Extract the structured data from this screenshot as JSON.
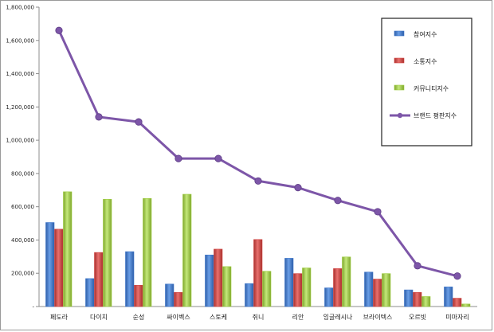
{
  "chart_data": {
    "type": "bar",
    "categories": [
      "페도라",
      "다이치",
      "순성",
      "싸이벡스",
      "스토케",
      "쥐니",
      "리안",
      "잉글레시나",
      "브라이텍스",
      "오르빗",
      "미마자리"
    ],
    "ylim": [
      0,
      1800000
    ],
    "yticks": [
      "-",
      "200,000",
      "400,000",
      "600,000",
      "800,000",
      "1,000,000",
      "1,200,000",
      "1,400,000",
      "1,600,000",
      "1,800,000"
    ],
    "grid": false,
    "legend_position": "top-right",
    "series": [
      {
        "name": "참여지수",
        "kind": "bar",
        "color": "#3b73c9",
        "values": [
          505000,
          168000,
          330000,
          135000,
          310000,
          138000,
          290000,
          112000,
          207000,
          100000,
          118000
        ]
      },
      {
        "name": "소통지수",
        "kind": "bar",
        "color": "#d2413f",
        "values": [
          465000,
          325000,
          128000,
          85000,
          345000,
          403000,
          198000,
          228000,
          165000,
          85000,
          50000
        ]
      },
      {
        "name": "커뮤니티지수",
        "kind": "bar",
        "color": "#9ccc3c",
        "values": [
          690000,
          645000,
          650000,
          675000,
          240000,
          212000,
          232000,
          298000,
          198000,
          60000,
          15000
        ]
      },
      {
        "name": "브랜드 평판지수",
        "kind": "line",
        "color": "#7d56a8",
        "values": [
          1660000,
          1140000,
          1110000,
          890000,
          890000,
          755000,
          715000,
          638000,
          570000,
          245000,
          183000
        ]
      }
    ]
  }
}
